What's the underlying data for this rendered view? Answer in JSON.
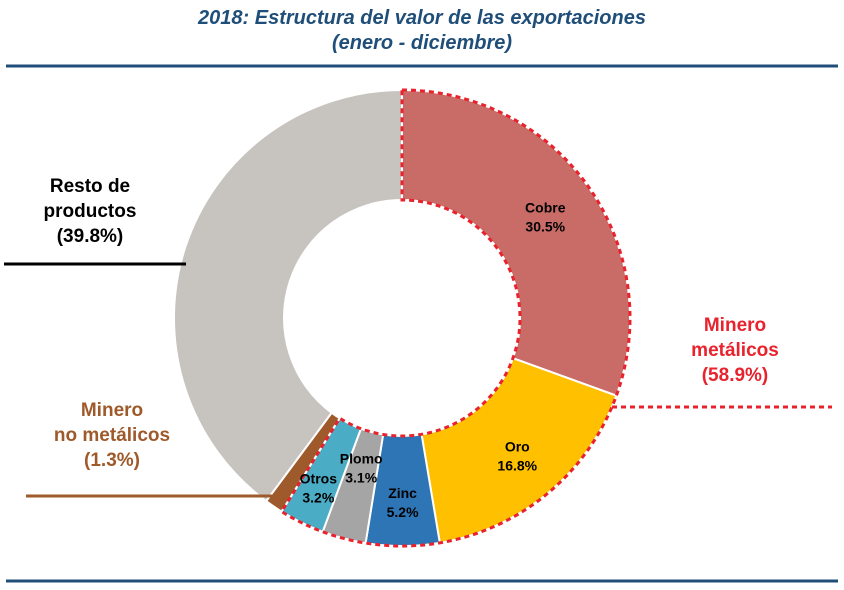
{
  "chart_data": {
    "type": "pie",
    "title": "2018: Estructura del valor de las exportaciones",
    "subtitle": "(enero - diciembre)",
    "slices": [
      {
        "name": "Cobre",
        "value": 30.5,
        "label": "30.5%",
        "color": "#c96b66"
      },
      {
        "name": "Oro",
        "value": 16.8,
        "label": "16.8%",
        "color": "#ffc000"
      },
      {
        "name": "Zinc",
        "value": 5.2,
        "label": "5.2%",
        "color": "#2e75b6"
      },
      {
        "name": "Plomo",
        "value": 3.1,
        "label": "3.1%",
        "color": "#a5a5a5"
      },
      {
        "name": "Otros",
        "value": 3.2,
        "label": "3.2%",
        "color": "#4bacc6"
      },
      {
        "name": "Minero no metálicos",
        "value": 1.3,
        "label": "",
        "color": "#9e5a2a"
      },
      {
        "name": "Resto de productos",
        "value": 39.8,
        "label": "",
        "color": "#c7c3bf"
      }
    ],
    "groups": {
      "resto": {
        "lines": [
          "Resto de",
          "productos",
          "(39.8%)"
        ],
        "color": "#000000"
      },
      "no_metalicos": {
        "lines": [
          "Minero",
          "no metálicos",
          "(1.3%)"
        ],
        "color": "#9e5a2a"
      },
      "metalicos": {
        "lines": [
          "Minero",
          "metálicos",
          "(58.9%)"
        ],
        "color": "#e8232d"
      }
    },
    "rule_color": "#1f4e79"
  }
}
